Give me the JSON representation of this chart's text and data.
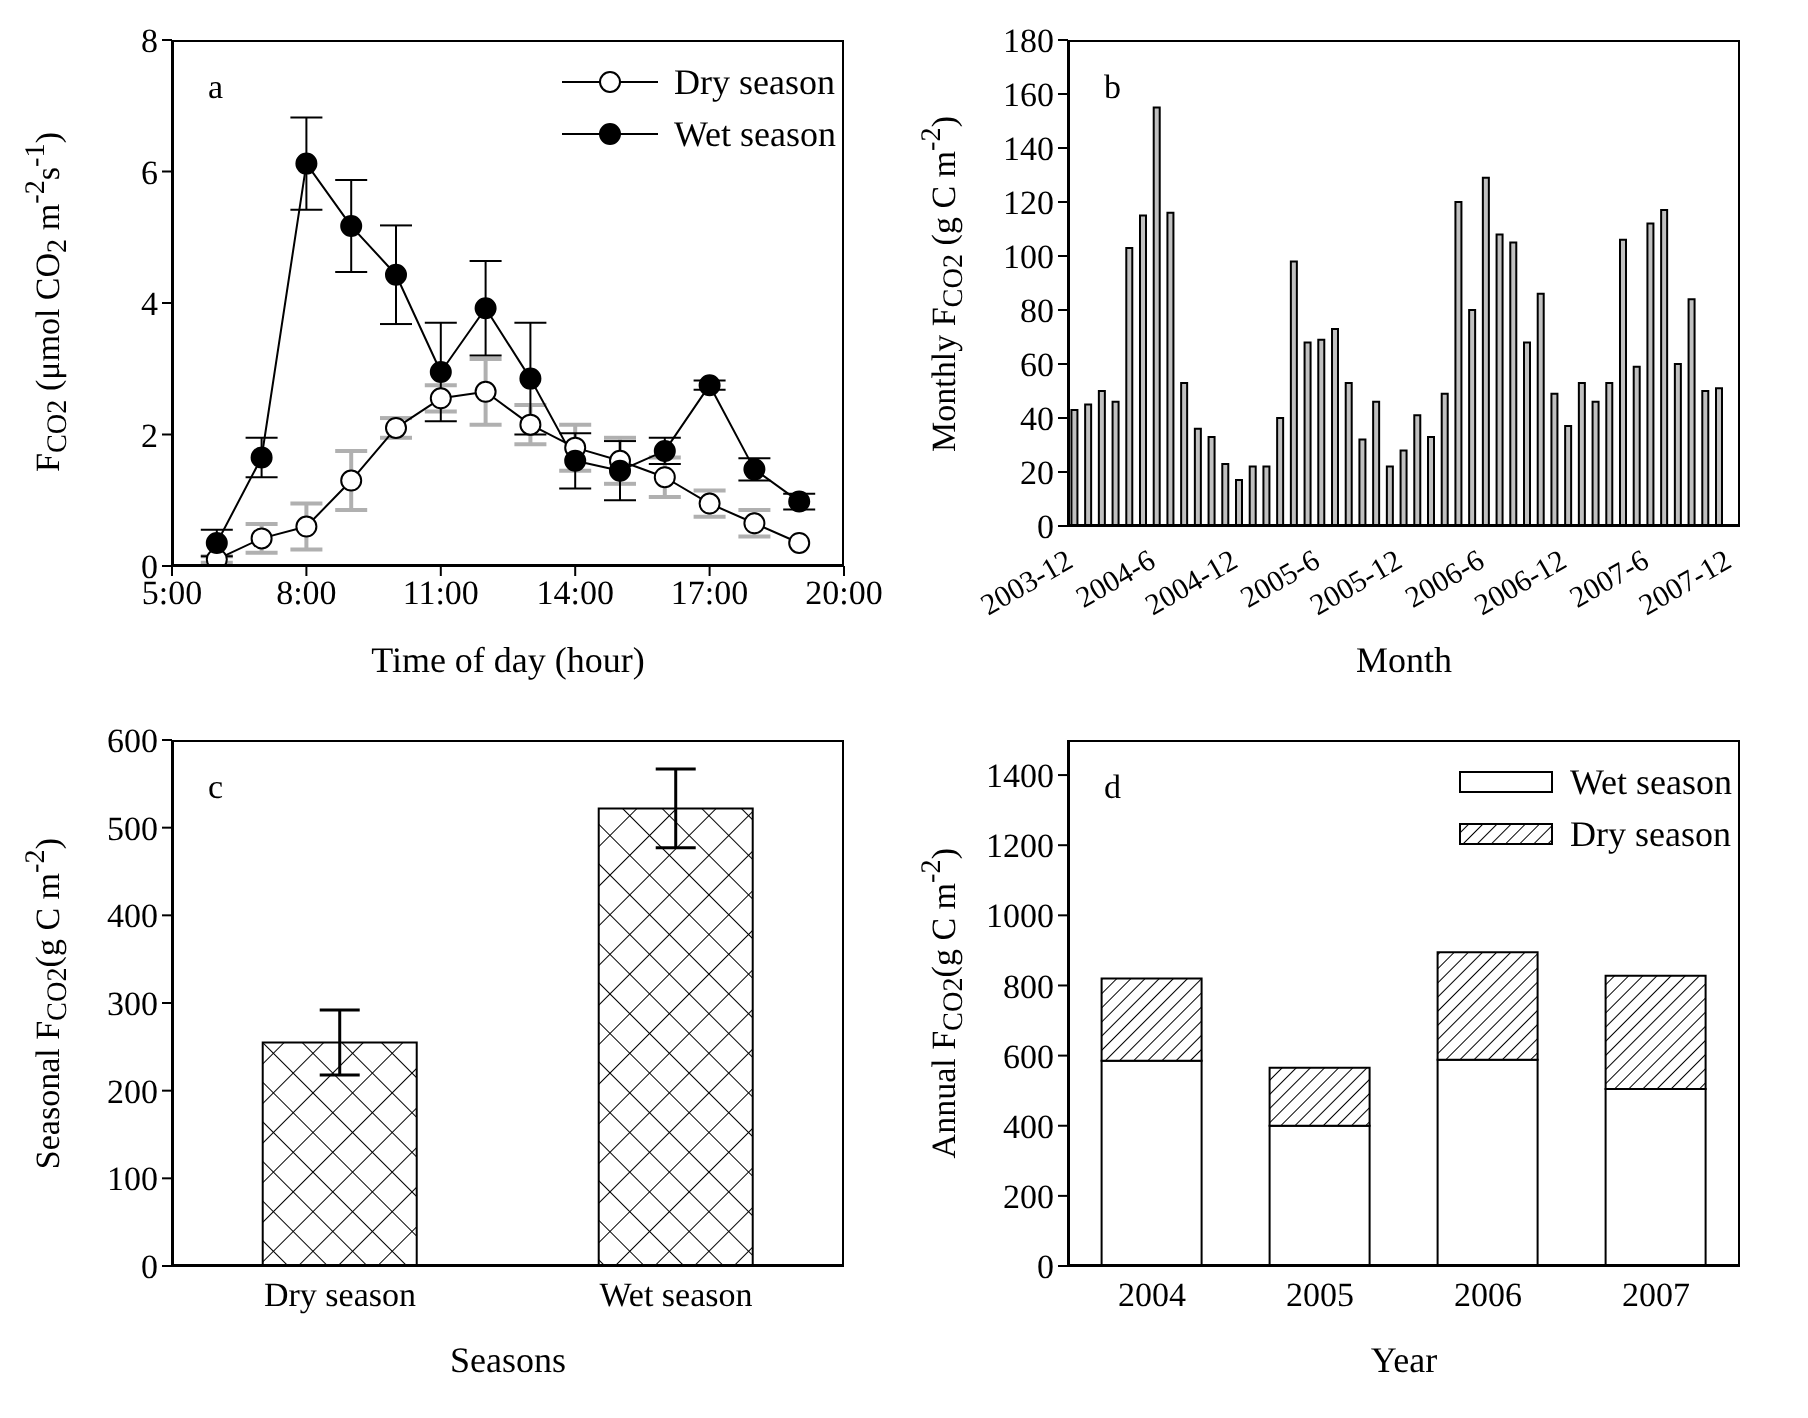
{
  "chart_data": [
    {
      "type": "line",
      "xlabel": "Time of day (hour)",
      "ylabel": "F$_{CO2}$ (μmol CO$_{2}$ m$^{-2}$s$^{-1}$)",
      "annotations": [
        "a"
      ],
      "x": [
        6,
        7,
        8,
        9,
        10,
        11,
        12,
        13,
        14,
        15,
        16,
        17,
        18,
        19
      ],
      "xlim": [
        5,
        20
      ],
      "xticks": [
        {
          "value": 5,
          "label": "5:00"
        },
        {
          "value": 8,
          "label": "8:00"
        },
        {
          "value": 11,
          "label": "11:00"
        },
        {
          "value": 14,
          "label": "14:00"
        },
        {
          "value": 17,
          "label": "17:00"
        },
        {
          "value": 20,
          "label": "20:00"
        }
      ],
      "ylim": [
        0,
        8
      ],
      "yticks": [
        0,
        2,
        4,
        6,
        8
      ],
      "legend": "top right",
      "marker": "circle",
      "line_style": "solid",
      "grid": false,
      "series": [
        {
          "name": "Dry season",
          "color": "#000000",
          "values": [
            0.1,
            0.42,
            0.6,
            1.3,
            2.1,
            2.55,
            2.65,
            2.15,
            1.8,
            1.6,
            1.35,
            0.95,
            0.65,
            0.35
          ],
          "errors": [
            0.05,
            0.22,
            0.35,
            0.45,
            0.15,
            0.2,
            0.5,
            0.3,
            0.35,
            0.35,
            0.3,
            0.2,
            0.2,
            null
          ]
        },
        {
          "name": "Wet season",
          "color": "#000000",
          "values": [
            0.35,
            1.65,
            6.12,
            5.17,
            4.43,
            2.95,
            3.92,
            2.85,
            1.6,
            1.45,
            1.75,
            2.75,
            1.47,
            0.98
          ],
          "errors": [
            0.2,
            0.3,
            0.7,
            0.7,
            0.75,
            0.75,
            0.72,
            0.85,
            0.42,
            0.45,
            0.2,
            0.07,
            0.17,
            0.12
          ]
        }
      ]
    },
    {
      "type": "bar",
      "xlabel": "Month",
      "ylabel": "Monthly F$_{CO2}$ (g C m$^{-2}$)",
      "annotations": [
        "b"
      ],
      "ylim": [
        0,
        180
      ],
      "yticks": [
        0,
        20,
        40,
        60,
        80,
        100,
        120,
        140,
        160,
        180
      ],
      "grid": false,
      "legend": false,
      "categories": [
        "2003-12",
        null,
        null,
        null,
        null,
        null,
        "2004-6",
        null,
        null,
        null,
        null,
        null,
        "2004-12",
        null,
        null,
        null,
        null,
        null,
        "2005-6",
        null,
        null,
        null,
        null,
        null,
        "2005-12",
        null,
        null,
        null,
        null,
        null,
        "2006-6",
        null,
        null,
        null,
        null,
        null,
        "2006-12",
        null,
        null,
        null,
        null,
        null,
        "2007-6",
        null,
        null,
        null,
        null,
        null,
        "2007-12"
      ],
      "series": [
        {
          "color": "#c0c0c0",
          "values": [
            43,
            45,
            50,
            46,
            103,
            115,
            155,
            116,
            53,
            36,
            33,
            23,
            17,
            22,
            22,
            40,
            98,
            68,
            69,
            73,
            53,
            32,
            46,
            22,
            28,
            41,
            33,
            49,
            120,
            80,
            129,
            108,
            105,
            68,
            86,
            49,
            37,
            53,
            46,
            53,
            106,
            59,
            112,
            117,
            60,
            84,
            50,
            51,
            null
          ]
        }
      ]
    },
    {
      "type": "bar",
      "xlabel": "Seasons",
      "ylabel": "Seasonal F$_{CO2}$(g C m$^{-2}$)",
      "annotations": [
        "c"
      ],
      "categories": [
        "Dry season",
        "Wet season"
      ],
      "ylim": [
        0,
        600
      ],
      "yticks": [
        0,
        100,
        200,
        300,
        400,
        500,
        600
      ],
      "grid": false,
      "legend": false,
      "series": [
        {
          "color": "#000000",
          "values": [
            255,
            522
          ],
          "errors": [
            37,
            45
          ]
        }
      ]
    },
    {
      "type": "bar",
      "stacked": true,
      "xlabel": "Year",
      "ylabel": "Annual F$_{CO2}$(g C m$^{-2}$)",
      "annotations": [
        "d"
      ],
      "categories": [
        "2004",
        "2005",
        "2006",
        "2007"
      ],
      "ylim": [
        0,
        1500
      ],
      "yticks": [
        0,
        200,
        400,
        600,
        800,
        1000,
        1200,
        1400
      ],
      "grid": false,
      "legend": "top right",
      "series": [
        {
          "name": "Wet season",
          "color": "#ffffff",
          "values": [
            585,
            400,
            588,
            505
          ]
        },
        {
          "name": "Dry season",
          "color": "#000000",
          "values": [
            235,
            165,
            307,
            323
          ]
        }
      ]
    }
  ]
}
